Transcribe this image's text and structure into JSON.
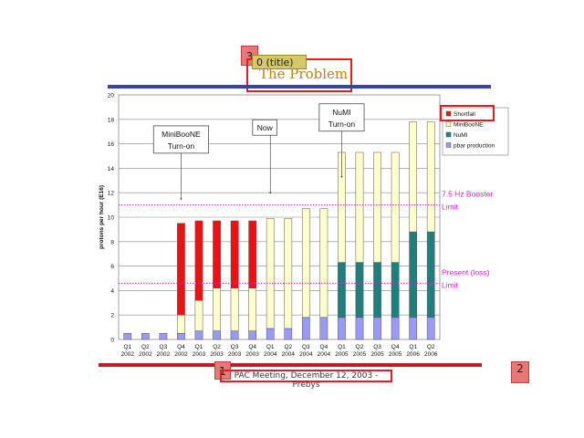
{
  "slide": {
    "title": "The Problem",
    "overlay_label": "0 (title)",
    "footer": "PAC Meeting, December 12, 2003 - Prebys",
    "badges": [
      "3",
      "1",
      "2"
    ],
    "colors": {
      "top_bar": "#3a42b0",
      "bottom_bar": "#c41b1b",
      "title": "#b8860b",
      "highlight": "#e02020"
    }
  },
  "chart_data": {
    "type": "bar",
    "stacked": true,
    "ylabel": "protons per hour (E16)",
    "ylim": [
      0,
      20
    ],
    "yticks": [
      0,
      2,
      4,
      6,
      8,
      10,
      12,
      14,
      16,
      18,
      20
    ],
    "categories": [
      [
        "Q1",
        "2002"
      ],
      [
        "Q2",
        "2002"
      ],
      [
        "Q3",
        "2002"
      ],
      [
        "Q4",
        "2002"
      ],
      [
        "Q1",
        "2003"
      ],
      [
        "Q2",
        "2003"
      ],
      [
        "Q3",
        "2003"
      ],
      [
        "Q4",
        "2003"
      ],
      [
        "Q1",
        "2004"
      ],
      [
        "Q2",
        "2004"
      ],
      [
        "Q3",
        "2004"
      ],
      [
        "Q4",
        "2004"
      ],
      [
        "Q1",
        "2005"
      ],
      [
        "Q2",
        "2005"
      ],
      [
        "Q3",
        "2005"
      ],
      [
        "Q4",
        "2005"
      ],
      [
        "Q1",
        "2006"
      ],
      [
        "Q2",
        "2006"
      ]
    ],
    "series": [
      {
        "name": "pbar production",
        "color": "#9999ff",
        "values": [
          0.5,
          0.5,
          0.5,
          0.5,
          0.7,
          0.7,
          0.7,
          0.7,
          0.9,
          0.9,
          1.8,
          1.8,
          1.8,
          1.8,
          1.8,
          1.8,
          1.8,
          1.8
        ]
      },
      {
        "name": "NuMI",
        "color": "#1f7f7f",
        "values": [
          0,
          0,
          0,
          0,
          0,
          0,
          0,
          0,
          0,
          0,
          0,
          0,
          4.5,
          4.5,
          4.5,
          4.5,
          7.0,
          7.0
        ]
      },
      {
        "name": "MiniBooNE",
        "color": "#ffffcc",
        "values": [
          0,
          0,
          0,
          1.5,
          2.5,
          3.5,
          3.5,
          3.5,
          9.0,
          9.0,
          8.9,
          8.9,
          9.0,
          9.0,
          9.0,
          9.0,
          9.0,
          9.0
        ]
      },
      {
        "name": "Shortfall",
        "color": "#ee1111",
        "values": [
          0,
          0,
          0,
          7.5,
          6.5,
          5.5,
          5.5,
          5.5,
          0,
          0,
          0,
          0,
          0,
          0,
          0,
          0,
          0,
          0
        ]
      }
    ],
    "legend_order": [
      "Shortfall",
      "MiniBooNE",
      "NuMI",
      "pbar production"
    ],
    "reference_lines": [
      {
        "value": 11,
        "label": [
          "7.5 Hz Booster",
          "Limit"
        ],
        "color": "#e020e0"
      },
      {
        "value": 4.6,
        "label": [
          "Present (loss)",
          "Limit"
        ],
        "color": "#e020e0"
      }
    ],
    "annotations": [
      {
        "lines": [
          "MiniBooNE",
          "Turn-on"
        ],
        "bar_index": 3,
        "value": 11.5
      },
      {
        "lines": [
          "Now"
        ],
        "bar_index": 8,
        "value": 12.0
      },
      {
        "lines": [
          "NuMI",
          "Turn-on"
        ],
        "bar_index": 12,
        "value": 13.3
      }
    ],
    "grid": true,
    "legend_position": "right"
  }
}
